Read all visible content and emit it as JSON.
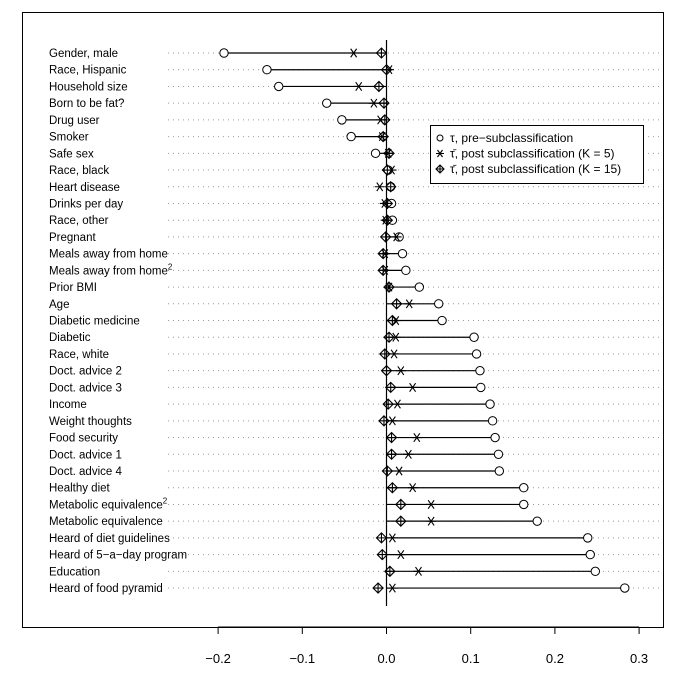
{
  "chart_data": {
    "type": "scatter",
    "orientation": "horizontal dot plot",
    "xlim": [
      -0.25,
      0.33
    ],
    "x_ticks": [
      "−0.2",
      "−0.1",
      "0.0",
      "0.1",
      "0.2",
      "0.3"
    ],
    "x_tick_values": [
      -0.2,
      -0.1,
      0.0,
      0.1,
      0.2,
      0.3
    ],
    "grid": "dotted horizontal guide per row",
    "reference_line": 0,
    "legend_placement": "top-right",
    "legend": [
      {
        "marker": "circle",
        "symbol": "τ",
        "text": ", pre−subclassification"
      },
      {
        "marker": "asterisk",
        "symbol": "τ̄",
        "text": ", post subclassification (K = 5)"
      },
      {
        "marker": "diamond-plus",
        "symbol": "τ̄",
        "text": ", post subclassification (K = 15)"
      }
    ],
    "categories": [
      {
        "label": "Gender, male",
        "sup": ""
      },
      {
        "label": "Race, Hispanic",
        "sup": ""
      },
      {
        "label": "Household size",
        "sup": ""
      },
      {
        "label": "Born to be fat?",
        "sup": ""
      },
      {
        "label": "Drug user",
        "sup": ""
      },
      {
        "label": "Smoker",
        "sup": ""
      },
      {
        "label": "Safe sex",
        "sup": ""
      },
      {
        "label": "Race, black",
        "sup": ""
      },
      {
        "label": "Heart disease",
        "sup": ""
      },
      {
        "label": "Drinks per day",
        "sup": ""
      },
      {
        "label": "Race, other",
        "sup": ""
      },
      {
        "label": "Pregnant",
        "sup": ""
      },
      {
        "label": "Meals away from home",
        "sup": ""
      },
      {
        "label": "Meals away from home",
        "sup": "2"
      },
      {
        "label": "Prior BMI",
        "sup": ""
      },
      {
        "label": "Age",
        "sup": ""
      },
      {
        "label": "Diabetic medicine",
        "sup": ""
      },
      {
        "label": "Diabetic",
        "sup": ""
      },
      {
        "label": "Race, white",
        "sup": ""
      },
      {
        "label": "Doct. advice 2",
        "sup": ""
      },
      {
        "label": "Doct. advice 3",
        "sup": ""
      },
      {
        "label": "Income",
        "sup": ""
      },
      {
        "label": "Weight thoughts",
        "sup": ""
      },
      {
        "label": "Food security",
        "sup": ""
      },
      {
        "label": "Doct. advice 1",
        "sup": ""
      },
      {
        "label": "Doct. advice 4",
        "sup": ""
      },
      {
        "label": "Healthy diet",
        "sup": ""
      },
      {
        "label": "Metabolic equivalence",
        "sup": "2"
      },
      {
        "label": "Metabolic equivalence",
        "sup": ""
      },
      {
        "label": "Heard of diet guidelines",
        "sup": ""
      },
      {
        "label": "Heard of 5−a−day program",
        "sup": ""
      },
      {
        "label": "Education",
        "sup": ""
      },
      {
        "label": "Heard of food pyramid",
        "sup": ""
      }
    ],
    "series": [
      {
        "marker": "circle",
        "values": [
          -0.193,
          -0.142,
          -0.128,
          -0.071,
          -0.053,
          -0.042,
          -0.013,
          0.002,
          0.005,
          0.006,
          0.007,
          0.015,
          0.019,
          0.023,
          0.039,
          0.062,
          0.066,
          0.104,
          0.107,
          0.111,
          0.112,
          0.123,
          0.126,
          0.129,
          0.133,
          0.134,
          0.163,
          0.163,
          0.179,
          0.239,
          0.242,
          0.248,
          0.283
        ]
      },
      {
        "marker": "asterisk",
        "values": [
          -0.039,
          0.003,
          -0.033,
          -0.015,
          -0.007,
          -0.005,
          0.002,
          0.006,
          -0.008,
          -0.002,
          -0.001,
          0.012,
          -0.002,
          -0.002,
          0.003,
          0.027,
          0.011,
          0.011,
          0.009,
          0.017,
          0.031,
          0.013,
          0.007,
          0.036,
          0.026,
          0.015,
          0.031,
          0.053,
          0.053,
          0.007,
          0.017,
          0.038,
          0.007
        ]
      },
      {
        "marker": "diamond-plus",
        "values": [
          -0.006,
          0.0,
          -0.009,
          -0.003,
          -0.002,
          -0.004,
          0.003,
          0.001,
          0.005,
          0.001,
          0.001,
          -0.001,
          -0.004,
          -0.004,
          0.003,
          0.012,
          0.007,
          0.003,
          -0.002,
          0.0,
          0.005,
          0.002,
          -0.003,
          0.006,
          0.006,
          0.001,
          0.007,
          0.017,
          0.017,
          -0.006,
          -0.005,
          0.004,
          -0.01
        ]
      }
    ]
  }
}
